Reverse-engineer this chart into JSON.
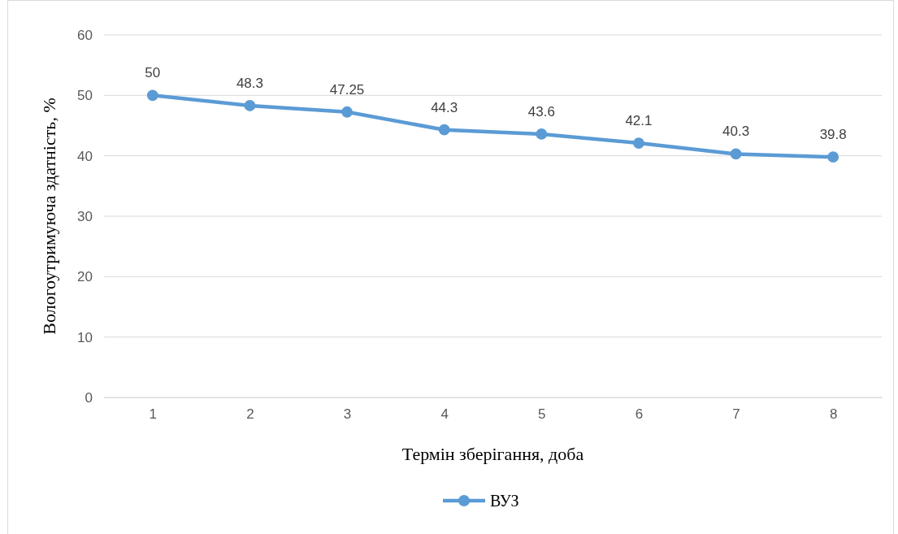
{
  "chart_data": {
    "type": "line",
    "xlabel": "Термін зберігання, доба",
    "ylabel": "Вологоутримуюча здатність, %",
    "categories": [
      "1",
      "2",
      "3",
      "4",
      "5",
      "6",
      "7",
      "8"
    ],
    "series": [
      {
        "name": "ВУЗ",
        "color": "#5b9bd5",
        "values": [
          50,
          48.3,
          47.25,
          44.3,
          43.6,
          42.1,
          40.3,
          39.8
        ]
      }
    ],
    "ylim": [
      0,
      60
    ],
    "yticks": [
      0,
      10,
      20,
      30,
      40,
      50,
      60
    ],
    "grid": "y",
    "legend": "bottom",
    "marker": "circle",
    "line_style": "solid",
    "data_labels": true
  }
}
